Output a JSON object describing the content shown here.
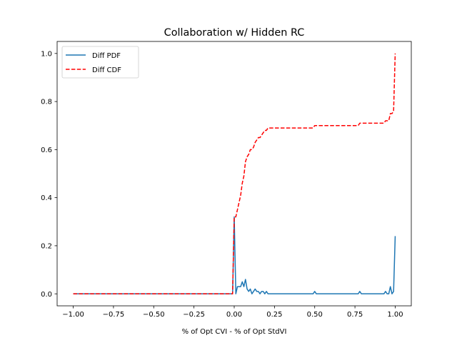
{
  "chart_data": {
    "type": "line",
    "title": "Collaboration w/ Hidden RC",
    "xlabel": "% of Opt CVI - % of Opt StdVI",
    "ylabel": "",
    "xlim": [
      -1.1,
      1.1
    ],
    "ylim": [
      -0.05,
      1.05
    ],
    "xticks": [
      -1.0,
      -0.75,
      -0.5,
      -0.25,
      0.0,
      0.25,
      0.5,
      0.75,
      1.0
    ],
    "xtick_labels": [
      "−1.00",
      "−0.75",
      "−0.50",
      "−0.25",
      "0.00",
      "0.25",
      "0.50",
      "0.75",
      "1.00"
    ],
    "yticks": [
      0.0,
      0.2,
      0.4,
      0.6,
      0.8,
      1.0
    ],
    "ytick_labels": [
      "0.0",
      "0.2",
      "0.4",
      "0.6",
      "0.8",
      "1.0"
    ],
    "grid": false,
    "legend_position": "top-left",
    "series": [
      {
        "name": "Diff PDF",
        "color": "#1f77b4",
        "style": "solid",
        "x": [
          -1.0,
          -0.01,
          0.0,
          0.01,
          0.02,
          0.03,
          0.04,
          0.05,
          0.06,
          0.07,
          0.08,
          0.09,
          0.1,
          0.11,
          0.12,
          0.13,
          0.14,
          0.15,
          0.16,
          0.17,
          0.18,
          0.19,
          0.2,
          0.21,
          0.22,
          0.23,
          0.3,
          0.49,
          0.5,
          0.51,
          0.77,
          0.78,
          0.79,
          0.93,
          0.94,
          0.95,
          0.96,
          0.97,
          0.98,
          0.99,
          1.0
        ],
        "y": [
          0.0,
          0.0,
          0.32,
          0.0,
          0.03,
          0.03,
          0.03,
          0.05,
          0.03,
          0.06,
          0.02,
          0.01,
          0.02,
          0.0,
          0.01,
          0.02,
          0.01,
          0.01,
          0.0,
          0.01,
          0.01,
          0.0,
          0.01,
          0.0,
          0.0,
          0.0,
          0.0,
          0.0,
          0.01,
          0.0,
          0.0,
          0.01,
          0.0,
          0.0,
          0.01,
          0.0,
          0.0,
          0.03,
          0.0,
          0.01,
          0.24
        ]
      },
      {
        "name": "Diff CDF",
        "color": "#ff0000",
        "style": "dashed",
        "x": [
          -1.0,
          -0.01,
          0.0,
          0.01,
          0.02,
          0.03,
          0.04,
          0.05,
          0.06,
          0.07,
          0.08,
          0.09,
          0.1,
          0.11,
          0.12,
          0.13,
          0.14,
          0.15,
          0.16,
          0.17,
          0.18,
          0.19,
          0.2,
          0.21,
          0.22,
          0.49,
          0.5,
          0.51,
          0.77,
          0.78,
          0.79,
          0.93,
          0.94,
          0.95,
          0.96,
          0.97,
          0.98,
          0.99,
          1.0
        ],
        "y": [
          0.0,
          0.0,
          0.32,
          0.32,
          0.35,
          0.38,
          0.41,
          0.46,
          0.49,
          0.55,
          0.57,
          0.58,
          0.6,
          0.6,
          0.61,
          0.63,
          0.64,
          0.65,
          0.65,
          0.66,
          0.67,
          0.68,
          0.68,
          0.69,
          0.69,
          0.69,
          0.7,
          0.7,
          0.7,
          0.71,
          0.71,
          0.71,
          0.72,
          0.72,
          0.72,
          0.75,
          0.75,
          0.76,
          1.0
        ]
      }
    ]
  }
}
